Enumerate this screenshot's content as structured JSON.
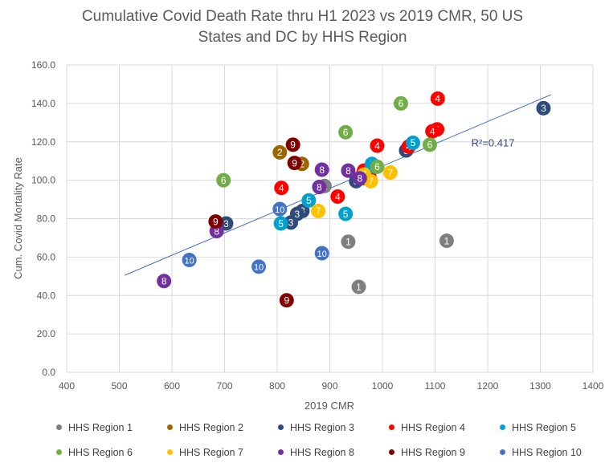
{
  "chart_data": {
    "type": "scatter",
    "title_line1": "Cumulative Covid Death Rate thru H1 2023 vs 2019 CMR, 50 US",
    "title_line2": "States and DC by HHS Region",
    "xlabel": "2019 CMR",
    "ylabel": "Cum. Covid Mortality Rate",
    "xlim": [
      400,
      1400
    ],
    "ylim": [
      0,
      160
    ],
    "xticks": [
      400,
      500,
      600,
      700,
      800,
      900,
      1000,
      1100,
      1200,
      1300,
      1400
    ],
    "yticks": [
      "0.0",
      "20.0",
      "40.0",
      "60.0",
      "80.0",
      "100.0",
      "120.0",
      "140.0",
      "160.0"
    ],
    "grid": "vertical and horizontal major gridlines",
    "legend_position": "bottom",
    "trendline": {
      "x_start": 510,
      "y_start": 50.5,
      "x_end": 1320,
      "y_end": 144.5,
      "color": "#4472C4",
      "label": "R²=0.417"
    },
    "series": [
      {
        "name": "HHS Region 1",
        "marker_label": "1",
        "color": "#7F7F7F",
        "points": [
          [
            935,
            68
          ],
          [
            955,
            44.5
          ],
          [
            1122,
            68.5
          ],
          [
            890,
            97
          ],
          [
            960,
            102
          ]
        ]
      },
      {
        "name": "HHS Region 2",
        "marker_label": "2",
        "color": "#9C6500",
        "points": [
          [
            805,
            114.5
          ],
          [
            847,
            108.5
          ],
          [
            963,
            101
          ]
        ]
      },
      {
        "name": "HHS Region 3",
        "marker_label": "3",
        "color": "#2F4B7C",
        "points": [
          [
            703,
            77.5
          ],
          [
            826,
            78
          ],
          [
            848,
            84
          ],
          [
            950,
            99.5
          ],
          [
            1045,
            115.5
          ],
          [
            1306,
            137.5
          ],
          [
            838,
            82.5
          ]
        ]
      },
      {
        "name": "HHS Region 4",
        "marker_label": "4",
        "color": "#FF0000",
        "points": [
          [
            1105,
            142.5
          ],
          [
            1104,
            126.5
          ],
          [
            1095,
            125.5
          ],
          [
            990,
            118
          ],
          [
            1050,
            117.5
          ],
          [
            808,
            96
          ],
          [
            915,
            91.5
          ],
          [
            965,
            105
          ],
          [
            975,
            102
          ]
        ]
      },
      {
        "name": "HHS Region 5",
        "marker_label": "5",
        "color": "#00A0CF",
        "points": [
          [
            1058,
            119.5
          ],
          [
            980,
            108.5
          ],
          [
            860,
            89.5
          ],
          [
            807,
            77.5
          ],
          [
            930,
            82.5
          ],
          [
            985,
            107
          ]
        ]
      },
      {
        "name": "HHS Region 6",
        "marker_label": "6",
        "color": "#70AD47",
        "points": [
          [
            1035,
            140
          ],
          [
            930,
            125
          ],
          [
            1090,
            118.5
          ],
          [
            698,
            100
          ],
          [
            990,
            107
          ]
        ]
      },
      {
        "name": "HHS Region 7",
        "marker_label": "7",
        "color": "#FFC000",
        "points": [
          [
            1015,
            104
          ],
          [
            978,
            99.5
          ],
          [
            878,
            84
          ],
          [
            965,
            103
          ]
        ]
      },
      {
        "name": "HHS Region 8",
        "marker_label": "8",
        "color": "#7030A0",
        "points": [
          [
            885,
            105.5
          ],
          [
            935,
            105
          ],
          [
            880,
            96.5
          ],
          [
            685,
            73.5
          ],
          [
            585,
            47.5
          ],
          [
            957,
            101
          ]
        ]
      },
      {
        "name": "HHS Region 9",
        "marker_label": "9",
        "color": "#800000",
        "points": [
          [
            830,
            118.5
          ],
          [
            833,
            109
          ],
          [
            683,
            78.5
          ],
          [
            818,
            37.5
          ]
        ]
      },
      {
        "name": "HHS Region 10",
        "marker_label": "10",
        "color": "#4472C4",
        "points": [
          [
            805,
            85
          ],
          [
            633,
            58.5
          ],
          [
            765,
            55
          ],
          [
            885,
            62
          ]
        ]
      }
    ]
  }
}
